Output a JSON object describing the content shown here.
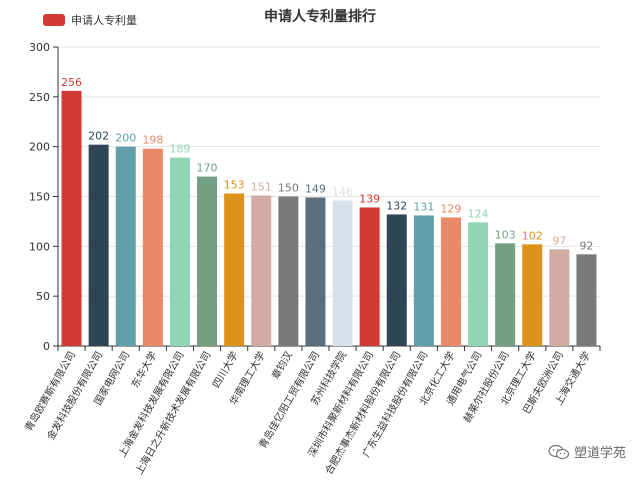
{
  "chart_data": {
    "type": "bar",
    "title": "申请人专利量排行",
    "xlabel": "",
    "ylabel": "",
    "ylim": [
      0,
      300
    ],
    "yticks": [
      0,
      50,
      100,
      150,
      200,
      250,
      300
    ],
    "grid": true,
    "legend_position": "top-left",
    "series": [
      {
        "name": "申请人专利量",
        "values": [
          256,
          202,
          200,
          198,
          189,
          170,
          153,
          151,
          150,
          149,
          146,
          139,
          132,
          131,
          129,
          124,
          103,
          102,
          97,
          92
        ]
      }
    ],
    "categories": [
      "青岛欧赛斯有限公司",
      "金发科技股份有限公司",
      "国家电网公司",
      "东华大学",
      "上海金发科技发展有限公司",
      "上海日之升新技术发展有限公司",
      "四川大学",
      "华南理工大学",
      "章钧汉",
      "青岛佳亿阳工贸有限公司",
      "苏州科技学院",
      "深圳市科聚新材料有限公司",
      "合肥杰事杰新材料股份有限公司",
      "广东生益科技股份有限公司",
      "北京化工大学",
      "通用电气公司",
      "赫莱尔社股份公司",
      "北京理工大学",
      "巴斯夫欧洲公司",
      "上海交通大学"
    ],
    "bar_colors": [
      "#d23a36",
      "#2f4554",
      "#61a0a8",
      "#e8896a",
      "#91d5b5",
      "#749f83",
      "#dd921b",
      "#d2aba4",
      "#7a7a7a",
      "#5a6e7e",
      "#d6e0ea",
      "#d23a36",
      "#2f4554",
      "#61a0a8",
      "#e8896a",
      "#91d5b5",
      "#749f83",
      "#dd921b",
      "#d2aba4",
      "#7a7a7a"
    ],
    "legend_color": "#d23a36"
  },
  "watermark": {
    "text": "塑道学苑",
    "icon": "wechat-icon"
  }
}
